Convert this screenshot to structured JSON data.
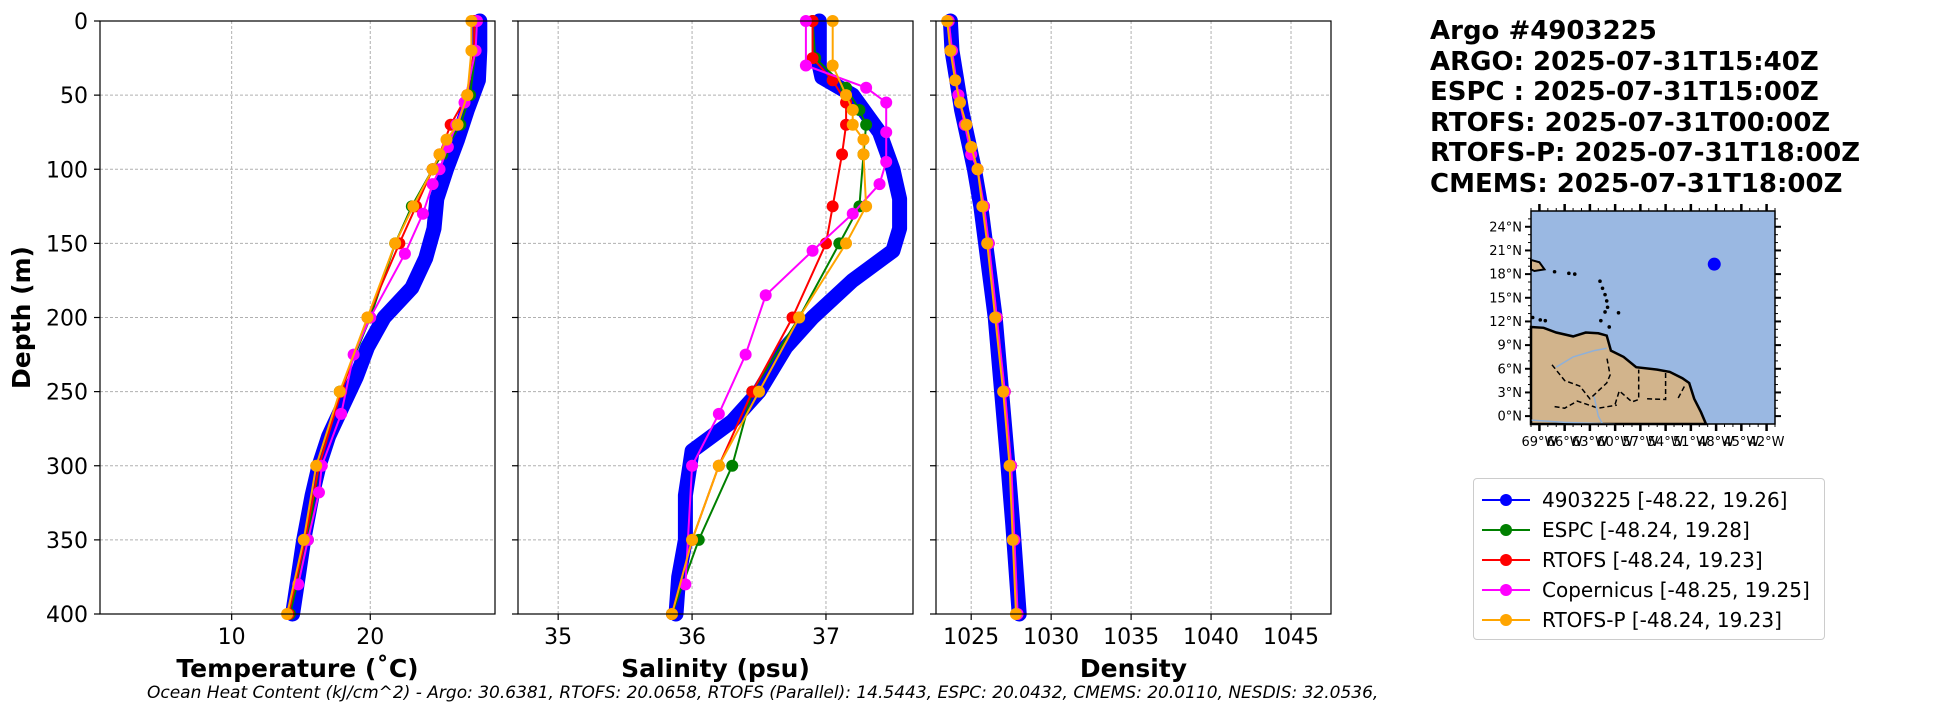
{
  "title_block": {
    "line1": "Argo #4903225",
    "line2": "ARGO: 2025-07-31T15:40Z",
    "line3": "ESPC : 2025-07-31T15:00Z",
    "line4": "RTOFS: 2025-07-31T00:00Z",
    "line5": "RTOFS-P: 2025-07-31T18:00Z",
    "line6": "CMEMS: 2025-07-31T18:00Z"
  },
  "ohc_text": "Ocean Heat Content (kJ/cm^2) - Argo: 30.6381,  RTOFS: 20.0658,  RTOFS (Parallel): 14.5443,  ESPC: 20.0432,  CMEMS: 20.0110,  NESDIS: 32.0536,",
  "colors": {
    "argo": "#0000ff",
    "espc": "#008000",
    "rtofs": "#ff0000",
    "copernicus": "#ff00ff",
    "rtofsp": "#ffa500",
    "ocean": "#9ab8e2",
    "land": "#d2b48c"
  },
  "legend": [
    {
      "label": "4903225 [-48.22, 19.26]",
      "color": "#0000ff"
    },
    {
      "label": "ESPC [-48.24, 19.28]",
      "color": "#008000"
    },
    {
      "label": "RTOFS [-48.24, 19.23]",
      "color": "#ff0000"
    },
    {
      "label": "Copernicus [-48.25, 19.25]",
      "color": "#ff00ff"
    },
    {
      "label": "RTOFS-P [-48.24, 19.23]",
      "color": "#ffa500"
    }
  ],
  "chart_data": [
    {
      "type": "line",
      "panel": "temperature",
      "xlabel": "Temperature (˚C)",
      "ylabel": "Depth (m)",
      "xlim": [
        0.5,
        29
      ],
      "ylim": [
        400,
        0
      ],
      "xticks": [
        10,
        20
      ],
      "xtick_labels": [
        "10",
        "20"
      ],
      "yticks": [
        0,
        50,
        100,
        150,
        200,
        250,
        300,
        350,
        400
      ],
      "ytick_labels": [
        "0",
        "50",
        "100",
        "150",
        "200",
        "250",
        "300",
        "350",
        "400"
      ],
      "grid": true,
      "series": [
        {
          "name": "4903225",
          "color": "#0000ff",
          "style": "thick",
          "x": [
            27.9,
            27.9,
            27.8,
            27.0,
            26.3,
            25.5,
            24.8,
            24.6,
            24.0,
            23.0,
            21.0,
            19.8,
            19.0,
            18.0,
            17.0,
            16.3,
            15.8,
            15.2,
            14.8,
            14.4
          ],
          "y": [
            0,
            20,
            40,
            60,
            80,
            100,
            120,
            140,
            160,
            180,
            200,
            220,
            240,
            260,
            280,
            300,
            320,
            350,
            375,
            400
          ]
        },
        {
          "name": "ESPC",
          "color": "#008000",
          "style": "marker",
          "x": [
            27.6,
            27.6,
            27.2,
            26.5,
            25.2,
            24.5,
            23.0,
            21.8,
            20.0,
            17.8,
            16.3,
            15.5,
            14.2
          ],
          "y": [
            0,
            20,
            50,
            70,
            90,
            100,
            125,
            150,
            200,
            250,
            300,
            350,
            400
          ]
        },
        {
          "name": "RTOFS",
          "color": "#ff0000",
          "style": "marker",
          "x": [
            27.5,
            27.5,
            27.0,
            25.8,
            25.0,
            24.5,
            23.3,
            22.1,
            19.8,
            17.9,
            16.3,
            15.3,
            14.1
          ],
          "y": [
            0,
            20,
            50,
            70,
            90,
            100,
            125,
            150,
            200,
            250,
            300,
            350,
            400
          ]
        },
        {
          "name": "Copernicus",
          "color": "#ff00ff",
          "style": "marker",
          "x": [
            27.7,
            27.6,
            26.8,
            26.2,
            25.6,
            25.0,
            24.5,
            23.8,
            22.5,
            20.0,
            18.8,
            17.9,
            16.5,
            16.3,
            15.5,
            14.8
          ],
          "y": [
            0,
            20,
            55,
            70,
            85,
            100,
            110,
            130,
            157,
            200,
            225,
            265,
            300,
            318,
            350,
            380
          ]
        },
        {
          "name": "RTOFS-P",
          "color": "#ffa500",
          "style": "marker",
          "x": [
            27.3,
            27.3,
            27.0,
            26.3,
            25.5,
            25.0,
            24.5,
            23.1,
            21.8,
            19.8,
            17.8,
            16.1,
            15.2,
            14.0
          ],
          "y": [
            0,
            20,
            50,
            70,
            80,
            90,
            100,
            125,
            150,
            200,
            250,
            300,
            350,
            400
          ]
        }
      ]
    },
    {
      "type": "line",
      "panel": "salinity",
      "xlabel": "Salinity (psu)",
      "ylabel": "",
      "xlim": [
        34.7,
        37.65
      ],
      "ylim": [
        400,
        0
      ],
      "xticks": [
        35,
        36,
        37
      ],
      "xtick_labels": [
        "35",
        "36",
        "37"
      ],
      "grid": true,
      "series": [
        {
          "name": "4903225",
          "color": "#0000ff",
          "style": "thick",
          "x": [
            36.95,
            36.95,
            36.97,
            37.2,
            37.4,
            37.5,
            37.55,
            37.55,
            37.5,
            37.2,
            36.9,
            36.7,
            36.5,
            36.3,
            36.0,
            35.95,
            35.95,
            35.9,
            35.88
          ],
          "y": [
            0,
            30,
            38,
            50,
            75,
            100,
            120,
            140,
            155,
            175,
            200,
            220,
            250,
            270,
            290,
            320,
            350,
            375,
            400
          ]
        },
        {
          "name": "ESPC",
          "color": "#008000",
          "style": "marker",
          "x": [
            36.9,
            36.92,
            37.15,
            37.25,
            37.3,
            37.28,
            37.25,
            37.1,
            36.8,
            36.45,
            36.3,
            36.05,
            35.85
          ],
          "y": [
            0,
            25,
            45,
            60,
            70,
            90,
            125,
            150,
            200,
            250,
            300,
            350,
            400
          ]
        },
        {
          "name": "RTOFS",
          "color": "#ff0000",
          "style": "marker",
          "x": [
            36.9,
            36.9,
            37.05,
            37.15,
            37.15,
            37.12,
            37.05,
            37.0,
            36.75,
            36.45,
            36.2,
            36.0,
            35.85
          ],
          "y": [
            0,
            25,
            40,
            55,
            70,
            90,
            125,
            150,
            200,
            250,
            300,
            350,
            400
          ]
        },
        {
          "name": "Copernicus",
          "color": "#ff00ff",
          "style": "marker",
          "x": [
            36.85,
            36.85,
            37.3,
            37.45,
            37.45,
            37.45,
            37.4,
            37.2,
            36.9,
            36.55,
            36.4,
            36.2,
            36.0,
            35.95
          ],
          "y": [
            0,
            30,
            45,
            55,
            75,
            95,
            110,
            130,
            155,
            185,
            225,
            265,
            300,
            380
          ]
        },
        {
          "name": "RTOFS-P",
          "color": "#ffa500",
          "style": "marker",
          "x": [
            37.05,
            37.05,
            37.15,
            37.2,
            37.2,
            37.28,
            37.28,
            37.3,
            37.15,
            36.8,
            36.5,
            36.2,
            36.0,
            35.85
          ],
          "y": [
            0,
            30,
            50,
            60,
            70,
            80,
            90,
            125,
            150,
            200,
            250,
            300,
            350,
            400
          ]
        }
      ]
    },
    {
      "type": "line",
      "panel": "density",
      "xlabel": "Density",
      "ylabel": "",
      "xlim": [
        1022.8,
        1047.5
      ],
      "ylim": [
        400,
        0
      ],
      "xticks": [
        1025,
        1030,
        1035,
        1040,
        1045
      ],
      "xtick_labels": [
        "1025",
        "1030",
        "1035",
        "1040",
        "1045"
      ],
      "grid": true,
      "series": [
        {
          "name": "4903225",
          "color": "#0000ff",
          "style": "thick",
          "x": [
            1023.7,
            1023.8,
            1024.1,
            1024.4,
            1024.8,
            1025.2,
            1025.6,
            1025.9,
            1026.2,
            1026.5,
            1026.9,
            1027.3,
            1027.6,
            1027.8,
            1028.0
          ],
          "y": [
            0,
            20,
            40,
            60,
            80,
            100,
            125,
            150,
            175,
            200,
            250,
            300,
            340,
            370,
            400
          ]
        },
        {
          "name": "ESPC",
          "color": "#008000",
          "style": "marker",
          "x": [
            1023.6,
            1023.8,
            1024.2,
            1024.6,
            1025.0,
            1025.4,
            1025.8,
            1026.1,
            1026.6,
            1027.1,
            1027.5,
            1027.7,
            1027.9
          ],
          "y": [
            0,
            20,
            50,
            70,
            90,
            100,
            125,
            150,
            200,
            250,
            300,
            350,
            400
          ]
        },
        {
          "name": "RTOFS",
          "color": "#ff0000",
          "style": "marker",
          "x": [
            1023.6,
            1023.8,
            1024.2,
            1024.6,
            1025.0,
            1025.4,
            1025.8,
            1026.1,
            1026.6,
            1027.1,
            1027.5,
            1027.7,
            1027.9
          ],
          "y": [
            0,
            20,
            50,
            70,
            90,
            100,
            125,
            150,
            200,
            250,
            300,
            350,
            400
          ]
        },
        {
          "name": "Copernicus",
          "color": "#ff00ff",
          "style": "marker",
          "x": [
            1023.6,
            1023.8,
            1024.2,
            1024.6,
            1025.0,
            1025.4,
            1025.8,
            1026.1,
            1026.6,
            1027.1,
            1027.5,
            1027.7,
            1027.9
          ],
          "y": [
            0,
            20,
            50,
            70,
            90,
            100,
            125,
            150,
            200,
            250,
            300,
            350,
            400
          ]
        },
        {
          "name": "RTOFS-P",
          "color": "#ffa500",
          "style": "marker",
          "x": [
            1023.5,
            1023.7,
            1024.0,
            1024.3,
            1024.7,
            1025.0,
            1025.4,
            1025.7,
            1026.0,
            1026.5,
            1027.0,
            1027.4,
            1027.6,
            1027.8
          ],
          "y": [
            0,
            20,
            40,
            55,
            70,
            85,
            100,
            125,
            150,
            200,
            250,
            300,
            350,
            400
          ]
        }
      ]
    },
    {
      "type": "map",
      "panel": "location-map",
      "lon_range": [
        -70,
        -41
      ],
      "lat_range": [
        -1,
        26
      ],
      "lat_ticks": [
        24,
        21,
        18,
        15,
        12,
        9,
        6,
        3,
        0
      ],
      "lat_labels": [
        "24°N",
        "21°N",
        "18°N",
        "15°N",
        "12°N",
        "9°N",
        "6°N",
        "3°N",
        "0°N"
      ],
      "lon_ticks": [
        -69,
        -66,
        -63,
        -60,
        -57,
        -54,
        -51,
        -48,
        -45,
        -42
      ],
      "lon_labels": [
        "69°W",
        "66°W",
        "63°W",
        "60°W",
        "57°W",
        "54°W",
        "51°W",
        "48°W",
        "45°W",
        "42°W"
      ],
      "float_position": [
        -48.22,
        19.26
      ]
    }
  ]
}
